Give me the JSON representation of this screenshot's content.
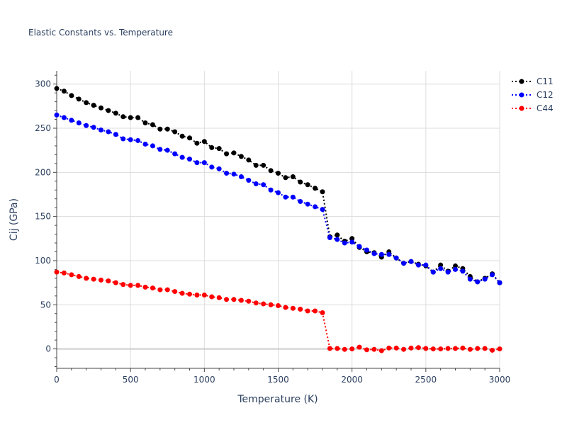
{
  "chart_data": {
    "type": "line",
    "title": "Elastic Constants vs. Temperature",
    "xlabel": "Temperature (K)",
    "ylabel": "Cij (GPa)",
    "xlim": [
      0,
      3000
    ],
    "ylim": [
      -22,
      315
    ],
    "x_ticks": [
      0,
      500,
      1000,
      1500,
      2000,
      2500,
      3000
    ],
    "y_ticks": [
      0,
      50,
      100,
      150,
      200,
      250,
      300
    ],
    "grid": true,
    "legend_position": "top-right",
    "x": [
      0,
      50,
      100,
      150,
      200,
      250,
      300,
      350,
      400,
      450,
      500,
      550,
      600,
      650,
      700,
      750,
      800,
      850,
      900,
      950,
      1000,
      1050,
      1100,
      1150,
      1200,
      1250,
      1300,
      1350,
      1400,
      1450,
      1500,
      1550,
      1600,
      1650,
      1700,
      1750,
      1800,
      1850,
      1900,
      1950,
      2000,
      2050,
      2100,
      2150,
      2200,
      2250,
      2300,
      2350,
      2400,
      2450,
      2500,
      2550,
      2600,
      2650,
      2700,
      2750,
      2800,
      2850,
      2900,
      2950,
      3000
    ],
    "series": [
      {
        "name": "C11",
        "color": "#000000",
        "values": [
          295,
          292,
          287,
          283,
          279,
          276,
          273,
          270,
          267,
          263,
          262,
          262,
          256,
          254,
          249,
          249,
          246,
          241,
          239,
          233,
          235,
          228,
          227,
          221,
          222,
          218,
          214,
          208,
          208,
          202,
          199,
          194,
          195,
          189,
          186,
          182,
          178,
          127,
          129,
          122,
          125,
          115,
          110,
          109,
          104,
          110,
          103,
          97,
          99,
          96,
          94,
          87,
          95,
          88,
          94,
          91,
          82,
          76,
          80,
          85,
          75
        ]
      },
      {
        "name": "C12",
        "color": "#0000ff",
        "values": [
          265,
          262,
          259,
          256,
          253,
          251,
          248,
          246,
          243,
          238,
          237,
          236,
          232,
          230,
          226,
          225,
          221,
          217,
          215,
          211,
          211,
          206,
          204,
          199,
          198,
          195,
          191,
          187,
          186,
          180,
          177,
          172,
          172,
          167,
          164,
          161,
          158,
          126,
          124,
          120,
          121,
          116,
          112,
          108,
          107,
          107,
          103,
          97,
          99,
          95,
          95,
          87,
          91,
          87,
          90,
          88,
          79,
          76,
          79,
          84,
          75
        ]
      },
      {
        "name": "C44",
        "color": "#ff0000",
        "values": [
          87,
          86,
          84,
          82,
          80,
          79,
          78,
          77,
          75,
          73,
          72,
          72,
          70,
          69,
          67,
          67,
          65,
          63,
          62,
          61,
          61,
          59,
          58,
          56,
          56,
          55,
          54,
          52,
          51,
          50,
          49,
          47,
          46,
          45,
          43,
          43,
          41,
          0.5,
          0.5,
          -0.5,
          0,
          2,
          -1,
          -0.5,
          -2,
          1,
          1,
          -0.5,
          1,
          1.5,
          0.5,
          0,
          0,
          0.5,
          0.5,
          1,
          -0.5,
          0.5,
          0.5,
          -1.5,
          0
        ]
      }
    ]
  }
}
